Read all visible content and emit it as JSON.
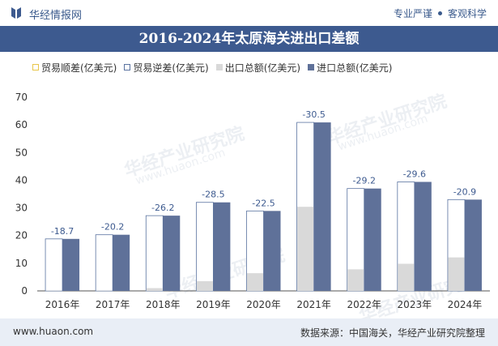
{
  "header": {
    "brand": "华经情报网",
    "slogan_left": "专业严谨",
    "slogan_right": "客观科学"
  },
  "chart_data": {
    "type": "bar",
    "title": "2016-2024年太原海关进出口差额",
    "categories": [
      "2016年",
      "2017年",
      "2018年",
      "2019年",
      "2020年",
      "2021年",
      "2022年",
      "2023年",
      "2024年"
    ],
    "series": [
      {
        "name": "贸易顺差(亿美元)",
        "values": [
          0,
          0,
          0,
          0,
          0,
          0,
          0,
          0,
          0
        ]
      },
      {
        "name": "贸易逆差(亿美元)",
        "values": [
          18.7,
          20.2,
          26.2,
          28.5,
          22.5,
          30.5,
          29.2,
          29.6,
          20.9
        ]
      },
      {
        "name": "出口总额(亿美元)",
        "values": [
          0.1,
          0.1,
          1.0,
          3.5,
          6.4,
          30.4,
          7.8,
          9.8,
          12.1
        ]
      },
      {
        "name": "进口总额(亿美元)",
        "values": [
          18.8,
          20.3,
          27.2,
          32.0,
          28.9,
          60.9,
          37.0,
          39.4,
          33.0
        ]
      }
    ],
    "data_labels": [
      "-18.7",
      "-20.2",
      "-26.2",
      "-28.5",
      "-22.5",
      "-30.5",
      "-29.2",
      "-29.6",
      "-20.9"
    ],
    "yticks": [
      "0",
      "10",
      "20",
      "30",
      "40",
      "50",
      "60",
      "70"
    ],
    "ylim": [
      0,
      70
    ],
    "xlabel": "",
    "ylabel": "",
    "colors": {
      "surplus_border": "#e8c64a",
      "deficit_border": "#5a73a0",
      "export": "#d9d9d9",
      "import": "#5f7199",
      "label": "#3d5a8f",
      "axis": "#555555"
    }
  },
  "watermark": {
    "text": "华经产业研究院",
    "url": "www.huaon.com"
  },
  "footer": {
    "site": "www.huaon.com",
    "source": "数据来源：中国海关，华经产业研究院整理"
  }
}
